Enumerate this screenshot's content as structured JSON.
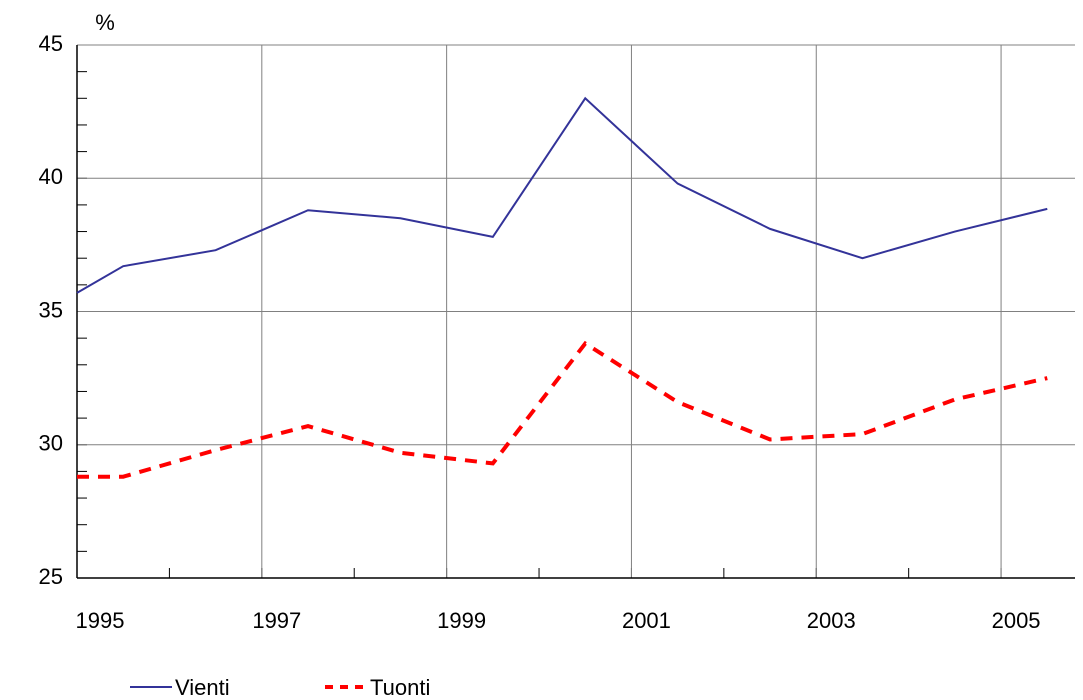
{
  "chart_data": {
    "type": "line",
    "y_unit_label": "%",
    "x": [
      1995,
      1995.5,
      1996.5,
      1997.5,
      1998.5,
      1999.5,
      2000.5,
      2001.5,
      2002.5,
      2003.5,
      2004.5,
      2005.5
    ],
    "series": [
      {
        "name": "Vienti",
        "color": "#333399",
        "dashed": false,
        "values": [
          35.7,
          36.7,
          37.3,
          38.8,
          38.5,
          37.8,
          43.0,
          39.8,
          38.1,
          37.0,
          38.0,
          38.85
        ]
      },
      {
        "name": "Tuonti",
        "color": "#ff0000",
        "dashed": true,
        "values": [
          28.8,
          28.8,
          29.8,
          30.7,
          29.7,
          29.3,
          33.8,
          31.6,
          30.2,
          30.4,
          31.7,
          32.5
        ]
      }
    ],
    "xlim": [
      1995,
      2005.8
    ],
    "xticks": [
      1995,
      1997,
      1999,
      2001,
      2003,
      2005
    ],
    "ylim": [
      25,
      45
    ],
    "yticks": [
      25,
      30,
      35,
      40,
      45
    ],
    "grid": true,
    "legend": "bottom"
  }
}
